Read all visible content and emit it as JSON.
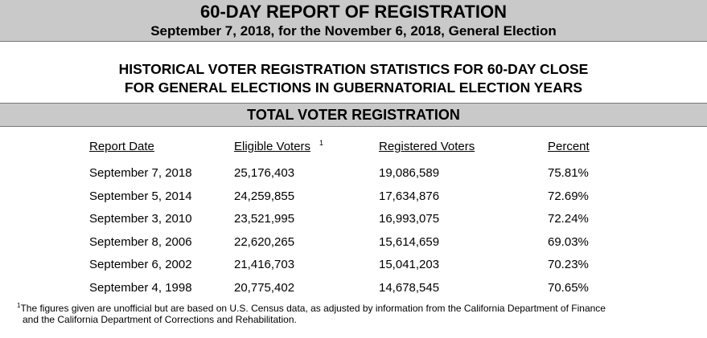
{
  "header": {
    "title": "60-DAY REPORT OF REGISTRATION",
    "subtitle": "September 7, 2018, for the November 6, 2018, General Election"
  },
  "historical": {
    "line1": "HISTORICAL VOTER REGISTRATION STATISTICS FOR 60-DAY CLOSE",
    "line2": "FOR GENERAL ELECTIONS IN GUBERNATORIAL ELECTION YEARS"
  },
  "section": {
    "title": "TOTAL VOTER REGISTRATION"
  },
  "table": {
    "columns": {
      "report_date": "Report Date",
      "eligible_voters": "Eligible Voters",
      "eligible_footnote_mark": "1",
      "registered_voters": "Registered Voters",
      "percent": "Percent"
    },
    "rows": [
      {
        "date": "September 7, 2018",
        "eligible": "25,176,403",
        "registered": "19,086,589",
        "percent": "75.81%"
      },
      {
        "date": "September 5, 2014",
        "eligible": "24,259,855",
        "registered": "17,634,876",
        "percent": "72.69%"
      },
      {
        "date": "September 3, 2010",
        "eligible": "23,521,995",
        "registered": "16,993,075",
        "percent": "72.24%"
      },
      {
        "date": "September 8, 2006",
        "eligible": "22,620,265",
        "registered": "15,614,659",
        "percent": "69.03%"
      },
      {
        "date": "September 6, 2002",
        "eligible": "21,416,703",
        "registered": "15,041,203",
        "percent": "70.23%"
      },
      {
        "date": "September 4, 1998",
        "eligible": "20,775,402",
        "registered": "14,678,545",
        "percent": "70.65%"
      }
    ]
  },
  "footnote": {
    "mark": "1",
    "line1": "The figures given are unofficial but are based on U.S. Census data, as adjusted by information from the California Department of Finance",
    "line2": "and the California Department of Corrections and Rehabilitation."
  }
}
